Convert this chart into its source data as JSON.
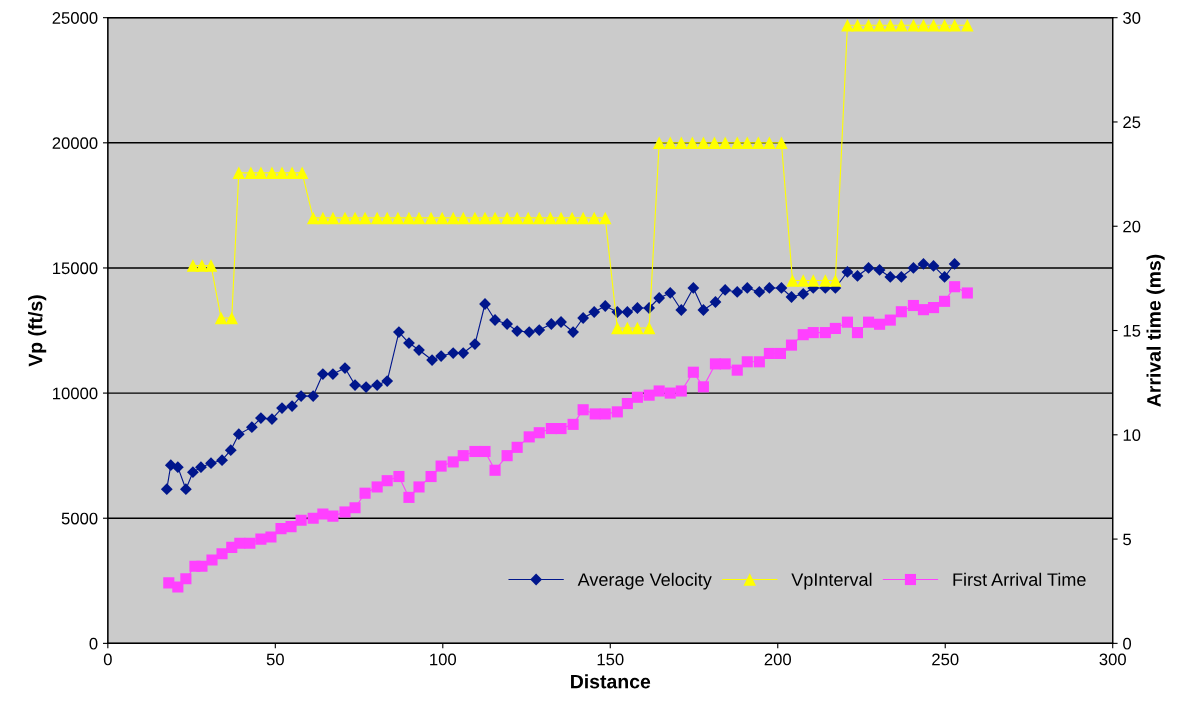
{
  "chart_data": {
    "type": "line",
    "xlabel": "Distance",
    "ylabel": "Vp (ft/s)",
    "y2label": "Arrival time (ms)",
    "xlim": [
      0,
      300
    ],
    "xticks": [
      0,
      50,
      100,
      150,
      200,
      250,
      300
    ],
    "ylim": [
      0,
      25000
    ],
    "yticks": [
      0,
      5000,
      10000,
      15000,
      20000,
      25000
    ],
    "y2lim": [
      0,
      30
    ],
    "y2ticks": [
      0,
      5,
      10,
      15,
      20,
      25,
      30
    ],
    "grid": "y",
    "legend": "bottom right",
    "line_style": "solid",
    "series": [
      {
        "name": "Average Velocity",
        "color": "#00168c",
        "marker": "diamond",
        "x": [
          17.6,
          18.8,
          20.9,
          23.3,
          25.4,
          27.8,
          30.8,
          34.1,
          36.7,
          39.1,
          43.0,
          45.7,
          49.0,
          52.0,
          55.0,
          57.7,
          61.3,
          64.2,
          67.2,
          70.8,
          73.8,
          77.1,
          80.4,
          83.4,
          86.9,
          89.9,
          92.9,
          96.8,
          99.5,
          103.1,
          106.1,
          109.6,
          112.6,
          115.6,
          119.2,
          122.2,
          125.8,
          128.8,
          132.4,
          135.3,
          138.9,
          141.9,
          145.2,
          148.5,
          152.1,
          155.1,
          158.1,
          161.6,
          164.6,
          167.9,
          171.2,
          174.8,
          177.8,
          181.4,
          184.3,
          187.9,
          190.9,
          194.5,
          197.5,
          201.1,
          204.1,
          207.6,
          210.6,
          214.2,
          217.2,
          220.8,
          223.8,
          227.1,
          230.4,
          233.6,
          236.9,
          240.5,
          243.5,
          246.5,
          249.8,
          252.8
        ],
        "values": [
          6160,
          7120,
          7040,
          6160,
          6840,
          7040,
          7200,
          7320,
          7720,
          8360,
          8640,
          9000,
          8960,
          9400,
          9480,
          9880,
          9880,
          10760,
          10760,
          11000,
          10320,
          10240,
          10320,
          10480,
          12440,
          12000,
          11720,
          11320,
          11480,
          11600,
          11600,
          11960,
          13560,
          12920,
          12760,
          12480,
          12440,
          12520,
          12760,
          12840,
          12440,
          13000,
          13240,
          13480,
          13240,
          13240,
          13400,
          13400,
          13800,
          14000,
          13320,
          14200,
          13320,
          13640,
          14120,
          14040,
          14200,
          14040,
          14200,
          14200,
          13840,
          13960,
          14200,
          14200,
          14200,
          14840,
          14680,
          15000,
          14920,
          14640,
          14640,
          15000,
          15160,
          15080,
          14640,
          15160
        ]
      },
      {
        "name": "VpInterval",
        "color": "#ffff00",
        "marker": "triangle",
        "x": [
          25.4,
          28.1,
          30.8,
          33.8,
          37.0,
          39.1,
          42.7,
          45.7,
          49.0,
          52.0,
          55.0,
          58.0,
          61.3,
          64.2,
          67.2,
          70.8,
          73.8,
          76.8,
          80.4,
          83.4,
          86.6,
          89.9,
          92.9,
          96.5,
          99.8,
          103.1,
          106.1,
          109.6,
          112.6,
          115.6,
          119.2,
          122.2,
          125.5,
          128.8,
          132.1,
          135.3,
          138.6,
          141.9,
          145.2,
          148.5,
          152.1,
          155.1,
          158.1,
          161.6,
          164.6,
          167.9,
          171.2,
          174.5,
          177.8,
          181.1,
          184.3,
          187.9,
          190.9,
          194.2,
          197.5,
          201.1,
          204.4,
          207.6,
          210.6,
          214.2,
          217.2,
          220.8,
          223.8,
          227.1,
          230.4,
          233.6,
          236.9,
          240.5,
          243.5,
          246.5,
          249.8,
          252.8,
          256.6
        ],
        "values": [
          15100,
          15100,
          15100,
          13000,
          13000,
          18800,
          18800,
          18800,
          18800,
          18800,
          18800,
          18800,
          17000,
          17000,
          17000,
          17000,
          17000,
          17000,
          17000,
          17000,
          17000,
          17000,
          17000,
          17000,
          17000,
          17000,
          17000,
          17000,
          17000,
          17000,
          17000,
          17000,
          17000,
          17000,
          17000,
          17000,
          17000,
          17000,
          17000,
          17000,
          12600,
          12600,
          12600,
          12600,
          20000,
          20000,
          20000,
          20000,
          20000,
          20000,
          20000,
          20000,
          20000,
          20000,
          20000,
          20000,
          14500,
          14500,
          14500,
          14500,
          14500,
          24700,
          24700,
          24700,
          24700,
          24700,
          24700,
          24700,
          24700,
          24700,
          24700,
          24700,
          24700
        ]
      },
      {
        "name": "First Arrival Time",
        "color": "#ff40ff",
        "marker": "square",
        "axis": "y2",
        "x": [
          18.2,
          20.9,
          23.3,
          26.0,
          28.1,
          31.1,
          34.1,
          37.0,
          39.4,
          42.4,
          45.7,
          48.7,
          51.7,
          54.7,
          57.7,
          61.3,
          64.2,
          67.2,
          70.8,
          73.8,
          76.8,
          80.4,
          83.4,
          86.9,
          89.9,
          92.9,
          96.5,
          99.5,
          103.1,
          106.1,
          109.6,
          112.6,
          115.6,
          119.2,
          122.2,
          125.8,
          128.8,
          132.4,
          135.3,
          138.9,
          141.9,
          145.5,
          148.5,
          152.1,
          155.1,
          158.1,
          161.6,
          164.6,
          167.9,
          171.2,
          174.8,
          177.8,
          181.4,
          184.3,
          187.9,
          190.9,
          194.5,
          197.5,
          200.8,
          204.1,
          207.6,
          210.6,
          214.2,
          217.2,
          220.8,
          223.8,
          227.1,
          230.4,
          233.6,
          236.9,
          240.5,
          243.5,
          246.5,
          249.8,
          252.8,
          256.6
        ],
        "values": [
          2.9,
          2.7,
          3.1,
          3.7,
          3.7,
          4.0,
          4.3,
          4.6,
          4.8,
          4.8,
          5.0,
          5.1,
          5.5,
          5.6,
          5.9,
          6.0,
          6.2,
          6.1,
          6.3,
          6.5,
          7.2,
          7.5,
          7.8,
          8.0,
          7.0,
          7.5,
          8.0,
          8.5,
          8.7,
          9.0,
          9.2,
          9.2,
          8.3,
          9.0,
          9.4,
          9.9,
          10.1,
          10.3,
          10.3,
          10.5,
          11.2,
          11.0,
          11.0,
          11.1,
          11.5,
          11.8,
          11.9,
          12.1,
          12.0,
          12.1,
          13.0,
          12.3,
          13.4,
          13.4,
          13.1,
          13.5,
          13.5,
          13.9,
          13.9,
          14.3,
          14.8,
          14.9,
          14.9,
          15.1,
          15.4,
          14.9,
          15.4,
          15.3,
          15.5,
          15.9,
          16.2,
          16.0,
          16.1,
          16.4,
          17.1,
          16.8
        ]
      }
    ]
  }
}
